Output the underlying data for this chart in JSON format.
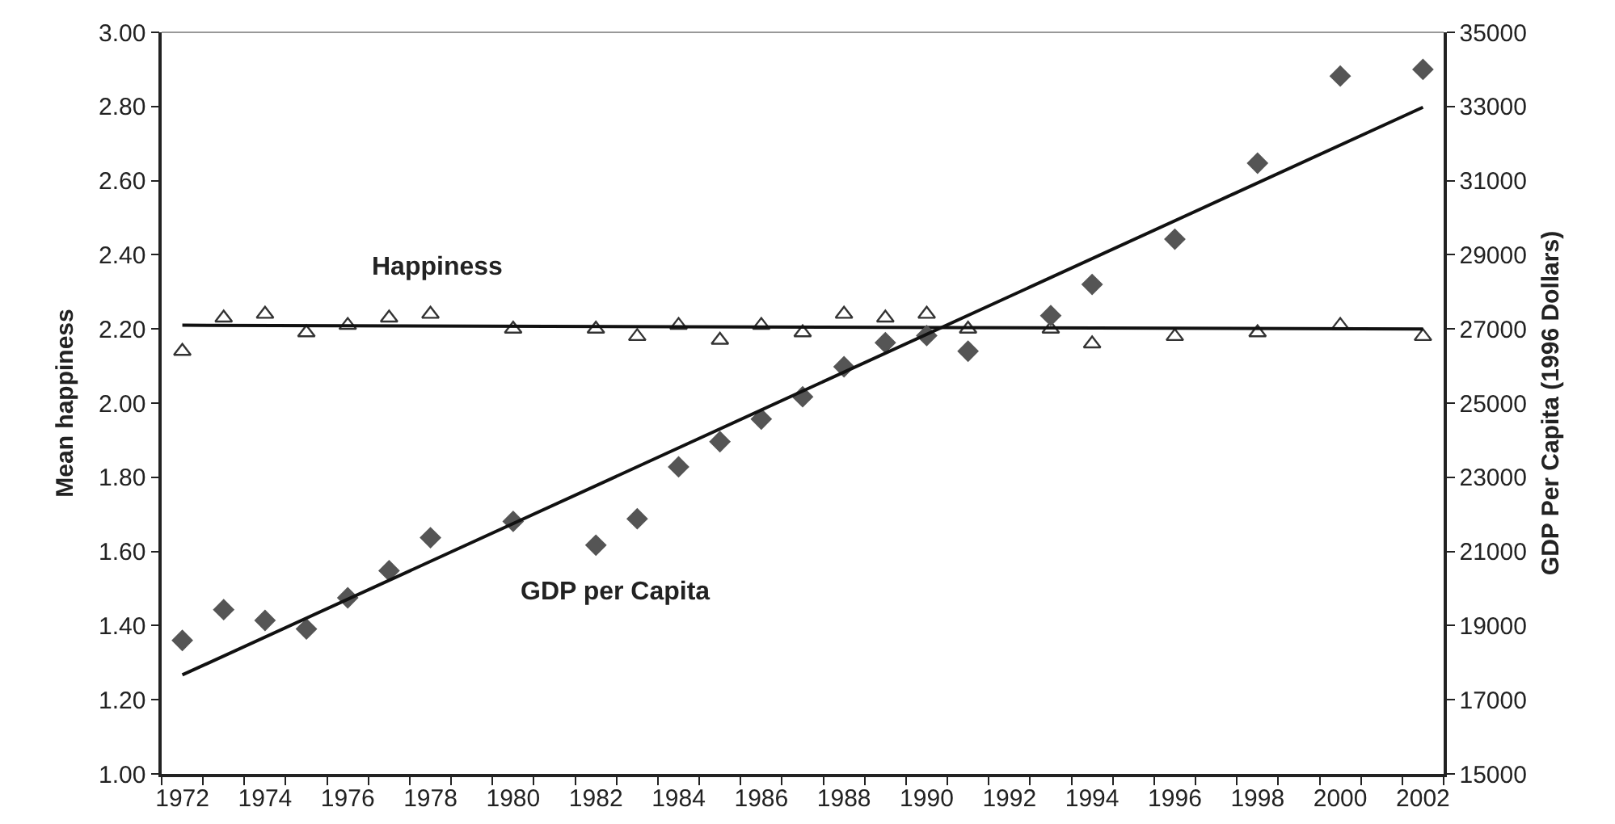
{
  "chart_data": {
    "type": "scatter",
    "ylabel": "Mean happiness",
    "y2label": "GDP Per Capita (1996 Dollars)",
    "xlim": [
      1971.5,
      2002.5
    ],
    "xticks": [
      1972,
      1974,
      1976,
      1978,
      1980,
      1982,
      1984,
      1986,
      1988,
      1990,
      1992,
      1994,
      1996,
      1998,
      2000,
      2002,
      {
        "value": 1971.5,
        "label": null
      },
      {
        "value": 1972.5,
        "label": null
      },
      {
        "value": 1973.5,
        "label": null
      },
      {
        "value": 1974.5,
        "label": null
      },
      {
        "value": 1975.5,
        "label": null
      },
      {
        "value": 1976.5,
        "label": null
      },
      {
        "value": 1977.5,
        "label": null
      },
      {
        "value": 1978.5,
        "label": null
      },
      {
        "value": 1979.5,
        "label": null
      },
      {
        "value": 1980.5,
        "label": null
      },
      {
        "value": 1981.5,
        "label": null
      },
      {
        "value": 1982.5,
        "label": null
      },
      {
        "value": 1983.5,
        "label": null
      },
      {
        "value": 1984.5,
        "label": null
      },
      {
        "value": 1985.5,
        "label": null
      },
      {
        "value": 1986.5,
        "label": null
      },
      {
        "value": 1987.5,
        "label": null
      },
      {
        "value": 1988.5,
        "label": null
      },
      {
        "value": 1989.5,
        "label": null
      },
      {
        "value": 1990.5,
        "label": null
      },
      {
        "value": 1991.5,
        "label": null
      },
      {
        "value": 1992.5,
        "label": null
      },
      {
        "value": 1993.5,
        "label": null
      },
      {
        "value": 1994.5,
        "label": null
      },
      {
        "value": 1995.5,
        "label": null
      },
      {
        "value": 1996.5,
        "label": null
      },
      {
        "value": 1997.5,
        "label": null
      },
      {
        "value": 1998.5,
        "label": null
      },
      {
        "value": 1999.5,
        "label": null
      },
      {
        "value": 2000.5,
        "label": null
      },
      {
        "value": 2001.5,
        "label": null
      },
      {
        "value": 2002.5,
        "label": null
      }
    ],
    "ylim": [
      1,
      3
    ],
    "yticks": [
      {
        "value": 1,
        "label": "1.00"
      },
      {
        "value": 1.2,
        "label": "1.20"
      },
      {
        "value": 1.4,
        "label": "1.40"
      },
      {
        "value": 1.6,
        "label": "1.60"
      },
      {
        "value": 1.8,
        "label": "1.80"
      },
      {
        "value": 2,
        "label": "2.00"
      },
      {
        "value": 2.2,
        "label": "2.20"
      },
      {
        "value": 2.4,
        "label": "2.40"
      },
      {
        "value": 2.6,
        "label": "2.60"
      },
      {
        "value": 2.8,
        "label": "2.80"
      },
      {
        "value": 3,
        "label": "3.00"
      }
    ],
    "y2lim": [
      15000,
      35000
    ],
    "y2ticks": [
      15000,
      17000,
      19000,
      21000,
      23000,
      25000,
      27000,
      29000,
      31000,
      33000,
      35000
    ],
    "grid": false,
    "series": [
      {
        "marker": "triangle",
        "color": "#333333",
        "x": [
          1972,
          1973,
          1974,
          1975,
          1976,
          1977,
          1978,
          1980,
          1982,
          1983,
          1984,
          1985,
          1986,
          1987,
          1988,
          1989,
          1990,
          1991,
          1993,
          1994,
          1996,
          1998,
          2000,
          2002
        ],
        "values": [
          2.14,
          2.23,
          2.24,
          2.19,
          2.21,
          2.23,
          2.24,
          2.2,
          2.2,
          2.18,
          2.21,
          2.17,
          2.21,
          2.19,
          2.24,
          2.23,
          2.24,
          2.2,
          2.2,
          2.16,
          2.18,
          2.19,
          2.21,
          2.18
        ]
      },
      {
        "type": "line",
        "marker": "none",
        "color": "#111111",
        "x": [
          1972,
          2002
        ],
        "values": [
          2.21,
          2.2
        ]
      },
      {
        "marker": "diamond",
        "axis": "y2",
        "color": "#555555",
        "x": [
          1972,
          1973,
          1974,
          1975,
          1976,
          1977,
          1978,
          1980,
          1982,
          1983,
          1984,
          1985,
          1986,
          1987,
          1988,
          1989,
          1990,
          1991,
          1993,
          1994,
          1996,
          1998,
          2000,
          2002
        ],
        "values": [
          18600,
          19430,
          19140,
          18910,
          19750,
          20480,
          21370,
          21810,
          21170,
          21880,
          23280,
          23960,
          24570,
          25170,
          25980,
          26630,
          26820,
          26400,
          27360,
          28200,
          29420,
          31470,
          33820,
          34000
        ]
      },
      {
        "type": "line",
        "marker": "none",
        "axis": "y2",
        "color": "#111111",
        "x": [
          1972,
          2002
        ],
        "values": [
          17670,
          32980
        ]
      }
    ],
    "annotations": [
      "Happiness",
      "GDP per Capita"
    ]
  }
}
